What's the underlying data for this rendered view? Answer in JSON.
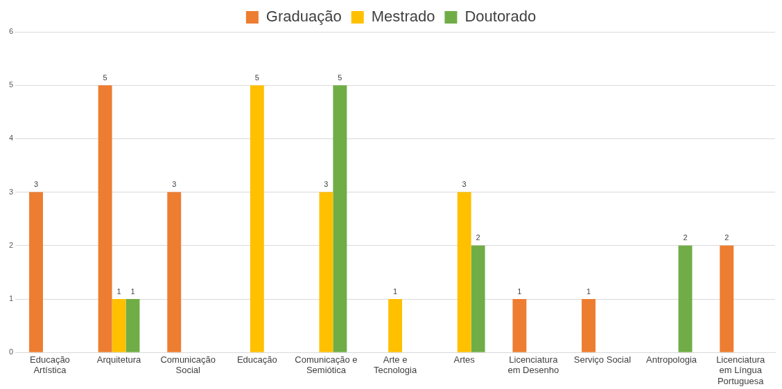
{
  "chart_data": {
    "type": "bar",
    "categories": [
      "Educação Artística",
      "Arquitetura",
      "Comunicação Social",
      "Educação",
      "Comunicação e Semiótica",
      "Arte e Tecnologia",
      "Artes",
      "Licenciatura em Desenho",
      "Serviço Social",
      "Antropologia",
      "Licenciatura em Língua Portuguesa"
    ],
    "series": [
      {
        "name": "Graduação",
        "color": "#ed7d31",
        "values": [
          3,
          5,
          3,
          null,
          null,
          null,
          null,
          1,
          1,
          null,
          2
        ]
      },
      {
        "name": "Mestrado",
        "color": "#ffc000",
        "values": [
          null,
          1,
          null,
          5,
          3,
          1,
          3,
          null,
          null,
          null,
          null
        ]
      },
      {
        "name": "Doutorado",
        "color": "#70ad47",
        "values": [
          null,
          1,
          null,
          null,
          5,
          null,
          2,
          null,
          null,
          2,
          null
        ]
      }
    ],
    "ylim": [
      0,
      6
    ],
    "yticks": [
      0,
      1,
      2,
      3,
      4,
      5,
      6
    ],
    "grid": "y",
    "legend": "top",
    "data_labels": true
  }
}
